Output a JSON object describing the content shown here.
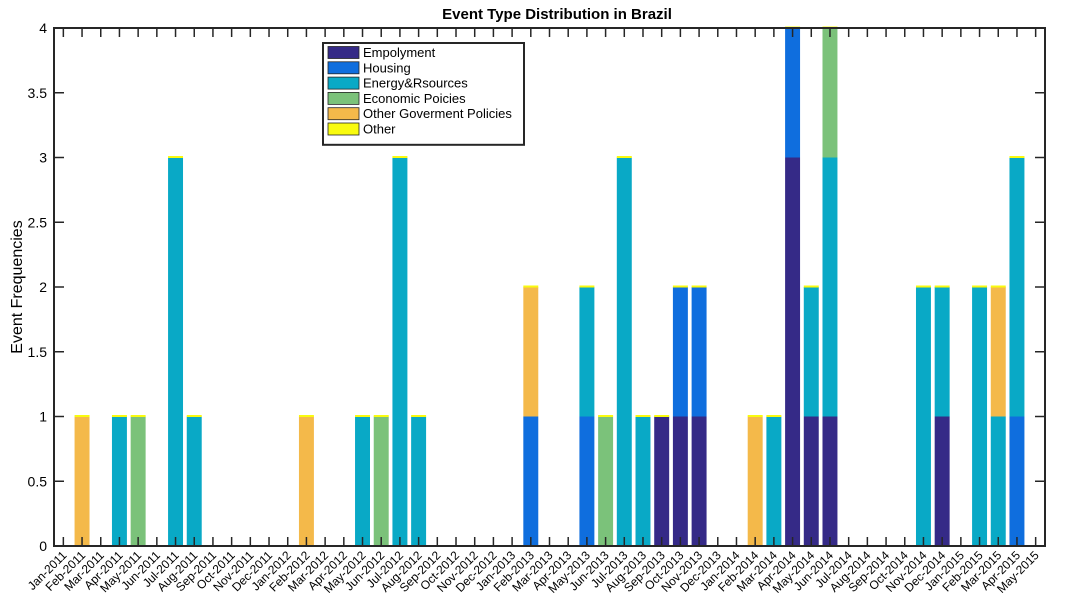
{
  "chart_data": {
    "type": "bar",
    "stacked": true,
    "title": "Event Type Distribution in Brazil",
    "xlabel": "",
    "ylabel": "Event Frequencies",
    "ylim": [
      0,
      4
    ],
    "yticks": [
      "0",
      "0.5",
      "1",
      "1.5",
      "2",
      "2.5",
      "3",
      "3.5",
      "4"
    ],
    "legend_position": "top-left",
    "categories": [
      "Jan-2011",
      "Feb-2011",
      "Mar-2011",
      "Apr-2011",
      "May-2011",
      "Jun-2011",
      "Jul-2011",
      "Aug-2011",
      "Sep-2011",
      "Oct-2011",
      "Nov-2011",
      "Dec-2011",
      "Jan-2012",
      "Feb-2012",
      "Mar-2012",
      "Apr-2012",
      "May-2012",
      "Jun-2012",
      "Jul-2012",
      "Aug-2012",
      "Sep-2012",
      "Oct-2012",
      "Nov-2012",
      "Dec-2012",
      "Jan-2013",
      "Feb-2013",
      "Mar-2013",
      "Apr-2013",
      "May-2013",
      "Jun-2013",
      "Jul-2013",
      "Aug-2013",
      "Sep-2013",
      "Oct-2013",
      "Nov-2013",
      "Dec-2013",
      "Jan-2014",
      "Feb-2014",
      "Mar-2014",
      "Apr-2014",
      "May-2014",
      "Jun-2014",
      "Jul-2014",
      "Aug-2014",
      "Sep-2014",
      "Oct-2014",
      "Nov-2014",
      "Dec-2014",
      "Jan-2015",
      "Feb-2015",
      "Mar-2015",
      "Apr-2015",
      "May-2015"
    ],
    "series": [
      {
        "name": "Empolyment",
        "color": "#352A87",
        "values": [
          0,
          0,
          0,
          0,
          0,
          0,
          0,
          0,
          0,
          0,
          0,
          0,
          0,
          0,
          0,
          0,
          0,
          0,
          0,
          0,
          0,
          0,
          0,
          0,
          0,
          0,
          0,
          0,
          0,
          0,
          0,
          0,
          1,
          1,
          1,
          0,
          0,
          0,
          0,
          3,
          1,
          1,
          0,
          0,
          0,
          0,
          0,
          1,
          0,
          0,
          0,
          0,
          0
        ]
      },
      {
        "name": "Housing",
        "color": "#0F6EDE",
        "values": [
          0,
          0,
          0,
          0,
          0,
          0,
          0,
          0,
          0,
          0,
          0,
          0,
          0,
          0,
          0,
          0,
          0,
          0,
          0,
          0,
          0,
          0,
          0,
          0,
          0,
          1,
          0,
          0,
          1,
          0,
          0,
          0,
          0,
          1,
          1,
          0,
          0,
          0,
          0,
          1,
          0,
          0,
          0,
          0,
          0,
          0,
          0,
          0,
          0,
          0,
          0,
          1,
          0
        ]
      },
      {
        "name": "Energy&Rsources",
        "color": "#09A9C6",
        "values": [
          0,
          0,
          0,
          1,
          0,
          0,
          3,
          1,
          0,
          0,
          0,
          0,
          0,
          0,
          0,
          0,
          1,
          0,
          3,
          1,
          0,
          0,
          0,
          0,
          0,
          0,
          0,
          0,
          1,
          0,
          3,
          1,
          0,
          0,
          0,
          0,
          0,
          0,
          1,
          0,
          1,
          2,
          0,
          0,
          0,
          0,
          2,
          1,
          0,
          2,
          1,
          2,
          0
        ]
      },
      {
        "name": "Economic Poicies",
        "color": "#7BC27A",
        "values": [
          0,
          0,
          0,
          0,
          1,
          0,
          0,
          0,
          0,
          0,
          0,
          0,
          0,
          0,
          0,
          0,
          0,
          1,
          0,
          0,
          0,
          0,
          0,
          0,
          0,
          0,
          0,
          0,
          0,
          1,
          0,
          0,
          0,
          0,
          0,
          0,
          0,
          0,
          0,
          0,
          0,
          1,
          0,
          0,
          0,
          0,
          0,
          0,
          0,
          0,
          0,
          0,
          0
        ]
      },
      {
        "name": "Other Goverment Policies",
        "color": "#F4B94A",
        "values": [
          0,
          1,
          0,
          0,
          0,
          0,
          0,
          0,
          0,
          0,
          0,
          0,
          0,
          1,
          0,
          0,
          0,
          0,
          0,
          0,
          0,
          0,
          0,
          0,
          0,
          1,
          0,
          0,
          0,
          0,
          0,
          0,
          0,
          0,
          0,
          0,
          0,
          1,
          0,
          0,
          0,
          0,
          0,
          0,
          0,
          0,
          0,
          0,
          0,
          0,
          1,
          0,
          0
        ]
      },
      {
        "name": "Other",
        "color": "#F9FB0E",
        "values": [
          0,
          0,
          0,
          0,
          0,
          0,
          0,
          0,
          0,
          0,
          0,
          0,
          0,
          0,
          0,
          0,
          0,
          0,
          0,
          0,
          0,
          0,
          0,
          0,
          0,
          0,
          0,
          0,
          0,
          0,
          0,
          0,
          0,
          0,
          0,
          0,
          0,
          0,
          0,
          0,
          0,
          0,
          0,
          0,
          0,
          0,
          0,
          0,
          0,
          0,
          0,
          0,
          0
        ]
      }
    ]
  }
}
